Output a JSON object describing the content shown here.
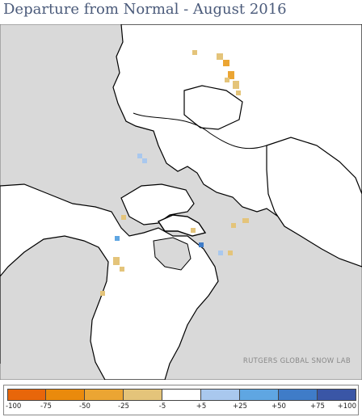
{
  "title": "Departure from Normal - August 2016",
  "credit": "RUTGERS GLOBAL SNOW LAB",
  "legend": {
    "colors": [
      "#e8660a",
      "#ea8a0c",
      "#eba533",
      "#e4c47a",
      "#ffffff",
      "#a9c8ee",
      "#5fa6e2",
      "#3f7cc8",
      "#3a56a6"
    ],
    "ticks": [
      "-100",
      "-75",
      "-50",
      "-25",
      "-5",
      "+5",
      "+25",
      "+50",
      "+75",
      "+100"
    ]
  },
  "map": {
    "land_color": "#ffffff",
    "ocean_color": "#d9d9d9",
    "border_color": "#000000",
    "ice_color": "#c9cfd6"
  }
}
